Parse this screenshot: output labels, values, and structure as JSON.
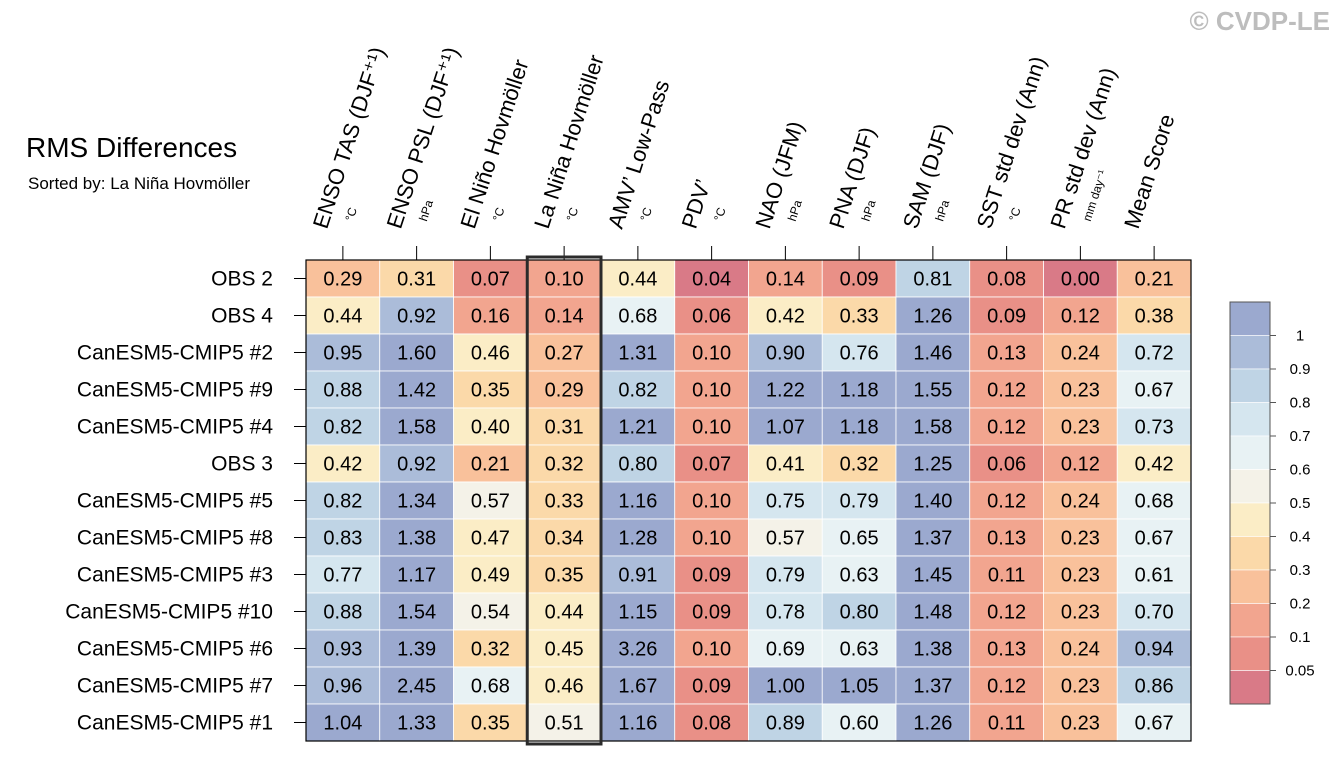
{
  "watermark": "© CVDP-LE",
  "chart_data": {
    "type": "heatmap",
    "title": "RMS Differences",
    "subtitle": "Sorted by: La Niña Hovmöller",
    "highlight_column": "La Niña Hovmöller",
    "columns": [
      {
        "label": "ENSO TAS (DJF⁺¹)",
        "unit": "°C"
      },
      {
        "label": "ENSO PSL (DJF⁺¹)",
        "unit": "hPa"
      },
      {
        "label": "El Niño Hovmöller",
        "unit": "°C"
      },
      {
        "label": "La Niña Hovmöller",
        "unit": "°C"
      },
      {
        "label": "AMV’ Low-Pass",
        "unit": "°C"
      },
      {
        "label": "PDV’",
        "unit": "°C"
      },
      {
        "label": "NAO (JFM)",
        "unit": "hPa"
      },
      {
        "label": "PNA (DJF)",
        "unit": "hPa"
      },
      {
        "label": "SAM (DJF)",
        "unit": "hPa"
      },
      {
        "label": "SST std dev (Ann)",
        "unit": "°C"
      },
      {
        "label": "PR std dev (Ann)",
        "unit": "mm day⁻¹"
      },
      {
        "label": "Mean Score",
        "unit": ""
      }
    ],
    "rows": [
      {
        "label": "OBS 2",
        "values": [
          "0.29",
          "0.31",
          "0.07",
          "0.10",
          "0.44",
          "0.04",
          "0.14",
          "0.09",
          "0.81",
          "0.08",
          "0.00",
          "0.21"
        ]
      },
      {
        "label": "OBS 4",
        "values": [
          "0.44",
          "0.92",
          "0.16",
          "0.14",
          "0.68",
          "0.06",
          "0.42",
          "0.33",
          "1.26",
          "0.09",
          "0.12",
          "0.38"
        ]
      },
      {
        "label": "CanESM5-CMIP5 #2",
        "values": [
          "0.95",
          "1.60",
          "0.46",
          "0.27",
          "1.31",
          "0.10",
          "0.90",
          "0.76",
          "1.46",
          "0.13",
          "0.24",
          "0.72"
        ]
      },
      {
        "label": "CanESM5-CMIP5 #9",
        "values": [
          "0.88",
          "1.42",
          "0.35",
          "0.29",
          "0.82",
          "0.10",
          "1.22",
          "1.18",
          "1.55",
          "0.12",
          "0.23",
          "0.67"
        ]
      },
      {
        "label": "CanESM5-CMIP5 #4",
        "values": [
          "0.82",
          "1.58",
          "0.40",
          "0.31",
          "1.21",
          "0.10",
          "1.07",
          "1.18",
          "1.58",
          "0.12",
          "0.23",
          "0.73"
        ]
      },
      {
        "label": "OBS 3",
        "values": [
          "0.42",
          "0.92",
          "0.21",
          "0.32",
          "0.80",
          "0.07",
          "0.41",
          "0.32",
          "1.25",
          "0.06",
          "0.12",
          "0.42"
        ]
      },
      {
        "label": "CanESM5-CMIP5 #5",
        "values": [
          "0.82",
          "1.34",
          "0.57",
          "0.33",
          "1.16",
          "0.10",
          "0.75",
          "0.79",
          "1.40",
          "0.12",
          "0.24",
          "0.68"
        ]
      },
      {
        "label": "CanESM5-CMIP5 #8",
        "values": [
          "0.83",
          "1.38",
          "0.47",
          "0.34",
          "1.28",
          "0.10",
          "0.57",
          "0.65",
          "1.37",
          "0.13",
          "0.23",
          "0.67"
        ]
      },
      {
        "label": "CanESM5-CMIP5 #3",
        "values": [
          "0.77",
          "1.17",
          "0.49",
          "0.35",
          "0.91",
          "0.09",
          "0.79",
          "0.63",
          "1.45",
          "0.11",
          "0.23",
          "0.61"
        ]
      },
      {
        "label": "CanESM5-CMIP5 #10",
        "values": [
          "0.88",
          "1.54",
          "0.54",
          "0.44",
          "1.15",
          "0.09",
          "0.78",
          "0.80",
          "1.48",
          "0.12",
          "0.23",
          "0.70"
        ]
      },
      {
        "label": "CanESM5-CMIP5 #6",
        "values": [
          "0.93",
          "1.39",
          "0.32",
          "0.45",
          "3.26",
          "0.10",
          "0.69",
          "0.63",
          "1.38",
          "0.13",
          "0.24",
          "0.94"
        ]
      },
      {
        "label": "CanESM5-CMIP5 #7",
        "values": [
          "0.96",
          "2.45",
          "0.68",
          "0.46",
          "1.67",
          "0.09",
          "1.00",
          "1.05",
          "1.37",
          "0.12",
          "0.23",
          "0.86"
        ]
      },
      {
        "label": "CanESM5-CMIP5 #1",
        "values": [
          "1.04",
          "1.33",
          "0.35",
          "0.51",
          "1.16",
          "0.08",
          "0.89",
          "0.60",
          "1.26",
          "0.11",
          "0.23",
          "0.67"
        ]
      }
    ],
    "colorbar": {
      "labels": [
        "1",
        "0.9",
        "0.8",
        "0.7",
        "0.6",
        "0.5",
        "0.4",
        "0.3",
        "0.2",
        "0.1",
        "0.05"
      ],
      "thresholds": [
        1,
        0.9,
        0.8,
        0.7,
        0.6,
        0.5,
        0.4,
        0.3,
        0.2,
        0.1,
        0.05
      ],
      "colors": [
        "#9ba9cf",
        "#abbcd9",
        "#bfd4e5",
        "#d5e6ef",
        "#e8f2f4",
        "#f4f2e8",
        "#fbedc6",
        "#fbd9a9",
        "#f9c19b",
        "#f2a58f",
        "#e99087",
        "#d97a87"
      ]
    }
  }
}
